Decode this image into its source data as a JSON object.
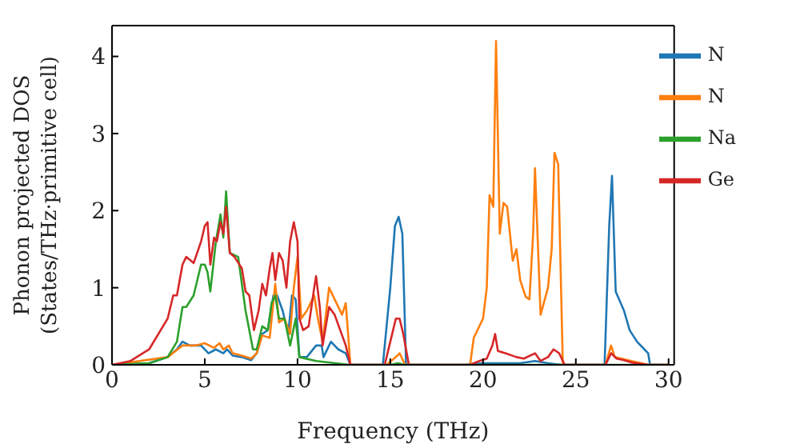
{
  "chart_data": {
    "type": "line",
    "xlabel": "Frequency (THz)",
    "ylabel": "Phonon projected DOS\n(States/THz·primitive cell)",
    "xlim": [
      0,
      30.3
    ],
    "ylim": [
      0,
      4.4
    ],
    "xticks": [
      0,
      5,
      10,
      15,
      20,
      25,
      30
    ],
    "yticks": [
      0,
      1,
      2,
      3,
      4
    ],
    "grid": false,
    "legend": "top right",
    "marker": "none",
    "line_style": "solid",
    "series": [
      {
        "name": "N",
        "color": "#1f77b4",
        "x": [
          0,
          2,
          3,
          3.5,
          3.8,
          4.2,
          4.8,
          5.2,
          5.6,
          6,
          6.2,
          6.5,
          7,
          7.5,
          7.8,
          8.1,
          8.4,
          8.7,
          8.9,
          9.2,
          9.5,
          9.7,
          9.9,
          10.1,
          10.5,
          11,
          11.3,
          11.4,
          11.8,
          12.2,
          12.6,
          12.85,
          14.6,
          15,
          15.25,
          15.45,
          15.65,
          15.85,
          19,
          20,
          22,
          22.8,
          23.5,
          24.2,
          26.55,
          26.8,
          26.95,
          27.15,
          27.6,
          27.9,
          28.3,
          28.7,
          28.9,
          29,
          30
        ],
        "values": [
          0,
          0.02,
          0.1,
          0.2,
          0.3,
          0.25,
          0.25,
          0.15,
          0.2,
          0.15,
          0.2,
          0.12,
          0.1,
          0.06,
          0.15,
          0.4,
          0.45,
          0.9,
          0.9,
          0.7,
          0.4,
          0.9,
          0.85,
          0.1,
          0.1,
          0.25,
          0.25,
          0.1,
          0.3,
          0.2,
          0.15,
          0,
          0,
          1,
          1.8,
          1.92,
          1.7,
          0,
          0,
          0.02,
          0.02,
          0.05,
          0.02,
          0,
          0,
          1.8,
          2.45,
          0.95,
          0.7,
          0.45,
          0.3,
          0.2,
          0.15,
          0,
          0
        ]
      },
      {
        "name": "N",
        "color": "#ff7f0e",
        "x": [
          0,
          3,
          3.8,
          4.5,
          5,
          5.5,
          5.8,
          6,
          6.3,
          6.5,
          7,
          7.5,
          7.8,
          8.1,
          8.5,
          8.8,
          9,
          9.3,
          9.6,
          9.8,
          10,
          10.2,
          10.5,
          10.9,
          11.1,
          11.35,
          11.7,
          12,
          12.4,
          12.6,
          12.85,
          14.8,
          15.3,
          15.5,
          15.8,
          19.3,
          19.5,
          20,
          20.2,
          20.35,
          20.55,
          20.7,
          20.9,
          21.1,
          21.3,
          21.6,
          21.8,
          22,
          22.3,
          22.5,
          22.7,
          22.8,
          23.1,
          23.5,
          23.7,
          23.85,
          24.05,
          24.3,
          26.6,
          26.9,
          27.1,
          28,
          28.9,
          30
        ],
        "values": [
          0,
          0.1,
          0.25,
          0.25,
          0.28,
          0.22,
          0.28,
          0.2,
          0.25,
          0.15,
          0.12,
          0.08,
          0.15,
          0.38,
          0.35,
          1.05,
          0.55,
          0.6,
          0.4,
          1,
          1.4,
          0.6,
          0.7,
          0.9,
          0.6,
          0.3,
          1,
          0.85,
          0.65,
          0.8,
          0,
          0,
          0.1,
          0.15,
          0,
          0,
          0.35,
          0.6,
          1,
          2.2,
          2.05,
          4.2,
          1.7,
          2.1,
          2.05,
          1.35,
          1.5,
          1.1,
          0.88,
          0.85,
          1.7,
          2.55,
          0.65,
          1,
          1.5,
          2.75,
          2.6,
          0,
          0,
          0.25,
          0.1,
          0.05,
          0,
          0
        ]
      },
      {
        "name": "Na",
        "color": "#2ca02c",
        "x": [
          0,
          2,
          3,
          3.5,
          3.8,
          4,
          4.4,
          4.8,
          5,
          5.15,
          5.3,
          5.6,
          5.85,
          6,
          6.15,
          6.35,
          6.8,
          7.2,
          7.6,
          7.8,
          8.1,
          8.4,
          8.6,
          8.8,
          9,
          9.3,
          9.6,
          9.9,
          10.1,
          11,
          12.8,
          15,
          15.4,
          15.8,
          30
        ],
        "values": [
          0,
          0.02,
          0.1,
          0.3,
          0.75,
          0.75,
          0.9,
          1.3,
          1.3,
          1.2,
          0.95,
          1.6,
          1.95,
          1.65,
          2.25,
          1.45,
          1.4,
          0.7,
          0.2,
          0.2,
          0.5,
          0.45,
          0.8,
          0.9,
          0.6,
          0.6,
          0.25,
          0.6,
          0.1,
          0.05,
          0,
          0,
          0.02,
          0,
          0
        ]
      },
      {
        "name": "Ge",
        "color": "#d62728",
        "x": [
          0,
          1,
          2,
          3,
          3.3,
          3.5,
          3.8,
          4,
          4.4,
          4.8,
          5,
          5.15,
          5.3,
          5.5,
          5.65,
          5.85,
          6,
          6.15,
          6.35,
          6.6,
          7,
          7.2,
          7.4,
          7.65,
          7.9,
          8.1,
          8.3,
          8.5,
          8.65,
          8.8,
          9,
          9.2,
          9.4,
          9.6,
          9.8,
          10,
          10.1,
          10.3,
          10.6,
          10.9,
          11,
          11.2,
          11.35,
          11.7,
          12,
          12.3,
          12.6,
          12.85,
          14.7,
          15,
          15.3,
          15.5,
          15.7,
          16,
          19.3,
          19.8,
          20.2,
          20.5,
          20.65,
          20.8,
          21.2,
          21.8,
          22.2,
          22.8,
          23.1,
          23.5,
          23.8,
          24.1,
          24.4,
          26.6,
          26.9,
          27.2,
          27.6,
          28,
          28.9,
          30
        ],
        "values": [
          0,
          0.05,
          0.2,
          0.6,
          0.9,
          0.9,
          1.3,
          1.4,
          1.32,
          1.6,
          1.8,
          1.85,
          1.3,
          1.65,
          1.6,
          1.85,
          1.7,
          2.05,
          1.45,
          1.4,
          1.25,
          0.95,
          0.9,
          0.45,
          0.7,
          1.05,
          0.9,
          1.25,
          1.45,
          1.1,
          1.45,
          1.35,
          1,
          1.6,
          1.85,
          1.6,
          0.6,
          0.45,
          0.5,
          1,
          1.15,
          0.75,
          0.25,
          0.75,
          0.65,
          0.45,
          0.25,
          0,
          0,
          0.3,
          0.6,
          0.6,
          0.4,
          0,
          0,
          0.05,
          0.08,
          0.25,
          0.4,
          0.18,
          0.15,
          0.1,
          0.08,
          0.15,
          0.05,
          0.1,
          0.2,
          0.15,
          0,
          0,
          0.15,
          0.08,
          0.06,
          0.03,
          0,
          0
        ]
      }
    ]
  }
}
